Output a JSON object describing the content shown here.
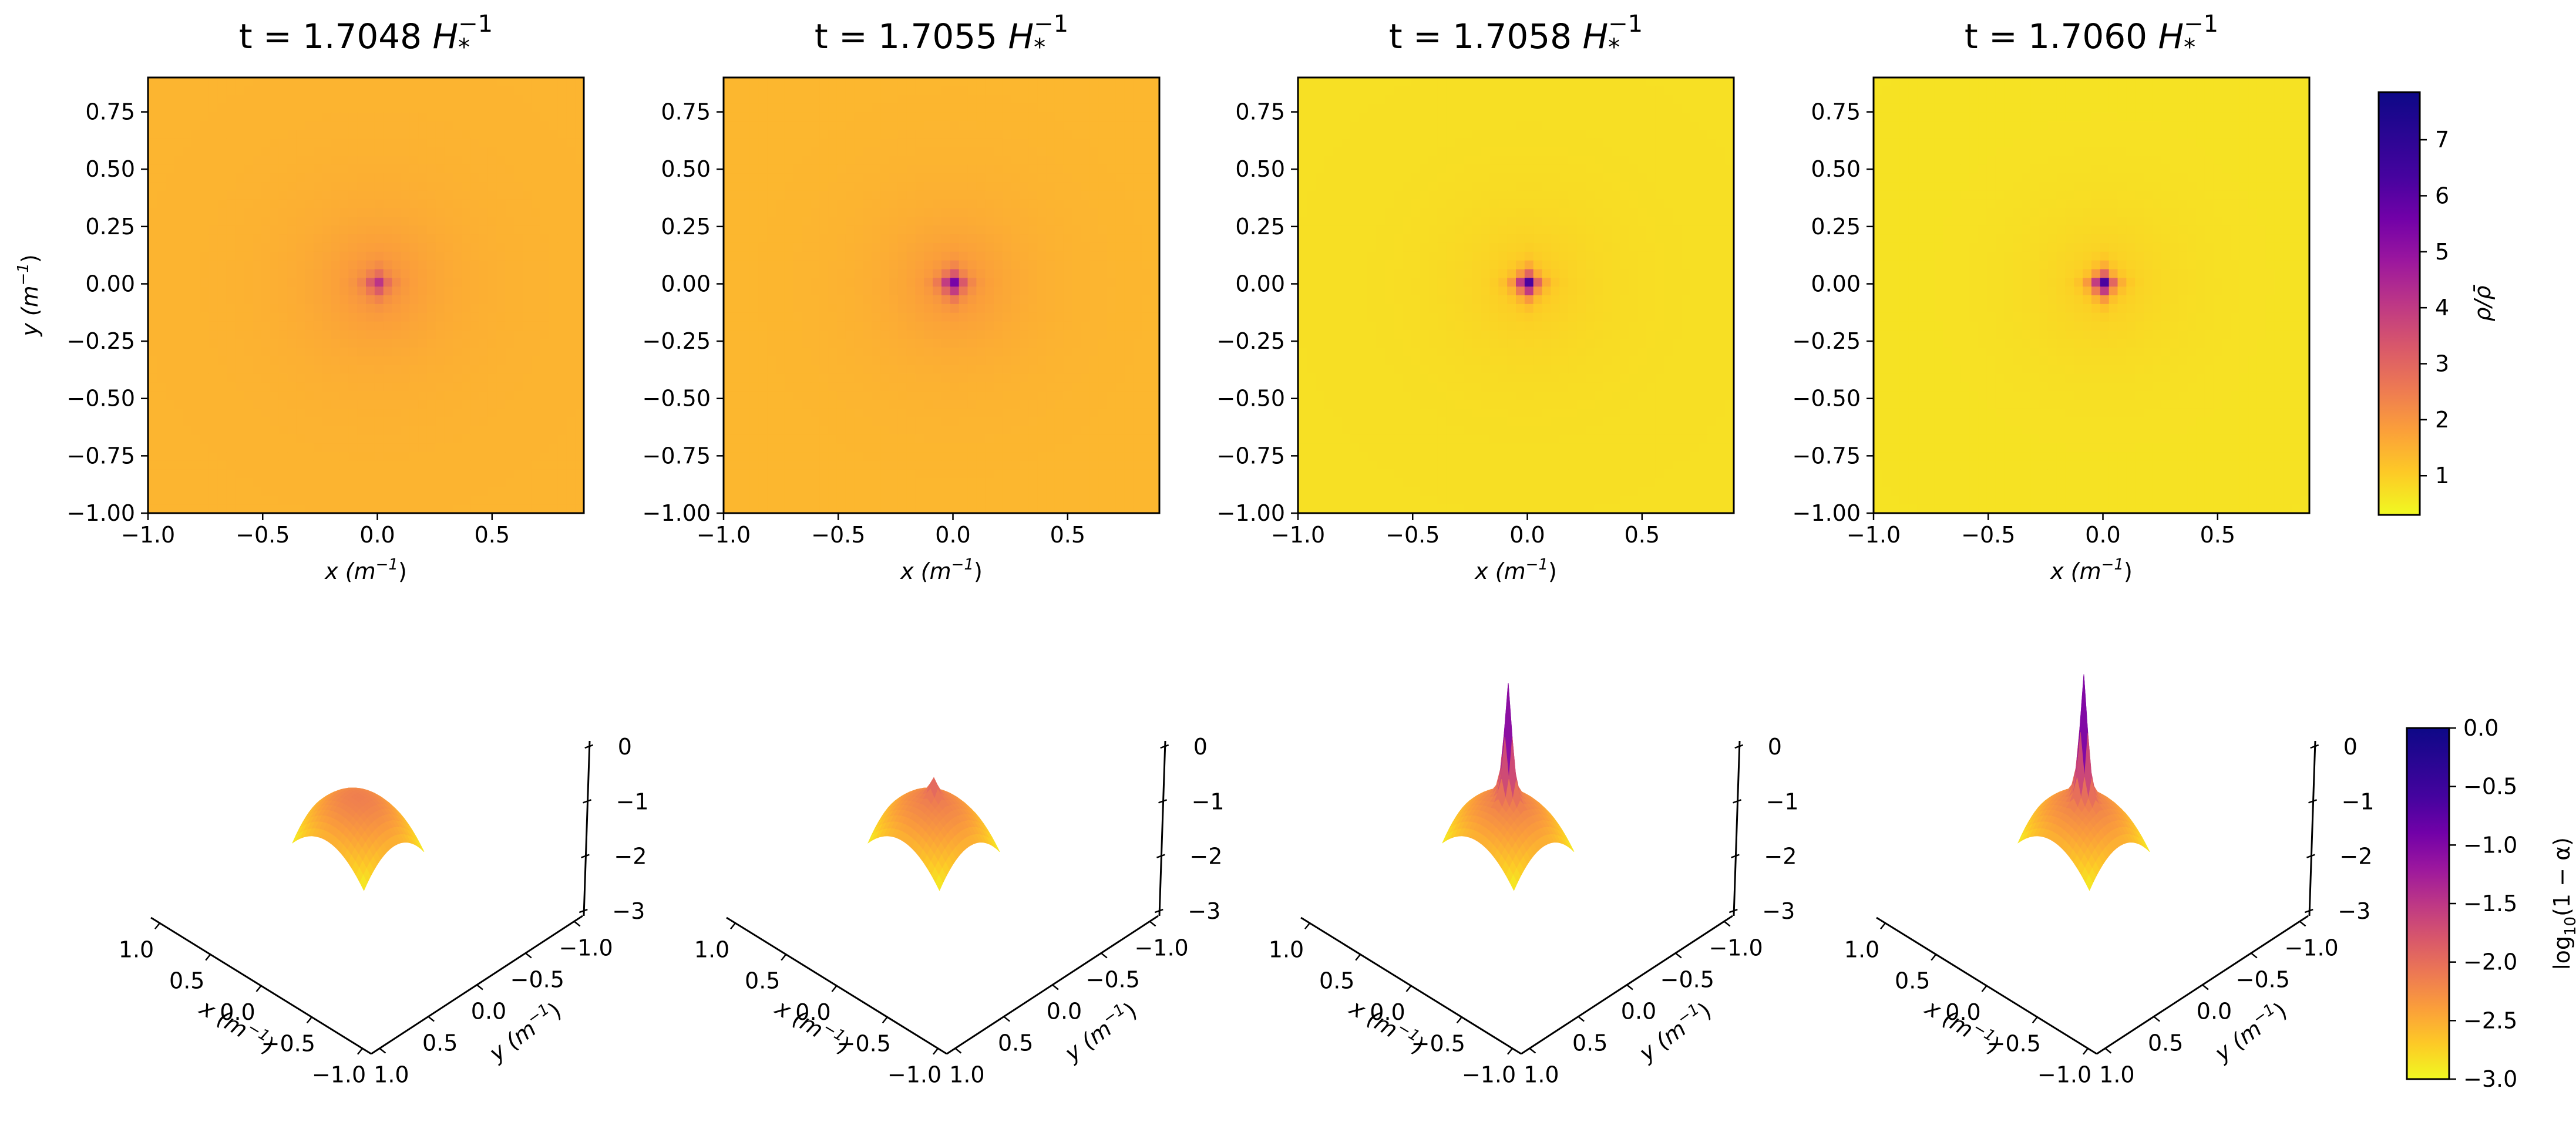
{
  "chart_data": {
    "type": "heatmap",
    "colormap": "plasma_r",
    "panels": [
      {
        "title_prefix": "t = 1.7048 ",
        "peak_rho": 4.2,
        "base_rho": 1.55,
        "peak_log": -2.05,
        "base_log": -2.6
      },
      {
        "title_prefix": "t = 1.7055 ",
        "peak_rho": 6.1,
        "base_rho": 1.5,
        "peak_log": -1.7,
        "base_log": -2.6
      },
      {
        "title_prefix": "t = 1.7058 ",
        "peak_rho": 7.8,
        "base_rho": 0.75,
        "peak_log": 0.0,
        "base_log": -2.6
      },
      {
        "title_prefix": "t = 1.7060 ",
        "peak_rho": 7.8,
        "base_rho": 0.7,
        "peak_log": 0.15,
        "base_log": -2.6
      }
    ],
    "title_unit": "H",
    "title_sub": "*",
    "title_sup": "−1",
    "heatmap": {
      "xlabel_main": "x (m",
      "xlabel_sup": "−1",
      "xlabel_end": ")",
      "ylabel_main": "y (m",
      "ylabel_sup": "−1",
      "ylabel_end": ")",
      "xlim": [
        -1.0,
        0.9
      ],
      "ylim": [
        -1.0,
        0.9
      ],
      "xticks": [
        -1.0,
        -0.5,
        0.0,
        0.5
      ],
      "xtick_labels": [
        "−1.0",
        "−0.5",
        "0.0",
        "0.5"
      ],
      "yticks": [
        0.75,
        0.5,
        0.25,
        0.0,
        -0.25,
        -0.5,
        -0.75,
        -1.0
      ],
      "ytick_labels": [
        "0.75",
        "0.50",
        "0.25",
        "0.00",
        "−0.25",
        "−0.50",
        "−0.75",
        "−1.00"
      ]
    },
    "colorbar_rho": {
      "label": "ρ/ρ̄",
      "range": [
        0.3,
        7.85
      ],
      "ticks": [
        1,
        2,
        3,
        4,
        5,
        6,
        7
      ],
      "tick_labels": [
        "1",
        "2",
        "3",
        "4",
        "5",
        "6",
        "7"
      ]
    },
    "surface": {
      "zlim": [
        -3,
        0
      ],
      "zticks": [
        0,
        -1,
        -2,
        -3
      ],
      "ztick_labels": [
        "0",
        "−1",
        "−2",
        "−3"
      ],
      "xticks": [
        1.0,
        0.5,
        0.0,
        -0.5,
        -1.0
      ],
      "xtick_labels": [
        "1.0",
        "0.5",
        "0.0",
        "−0.5",
        "−1.0"
      ],
      "yticks": [
        -1.0,
        -0.5,
        0.0,
        0.5,
        1.0
      ],
      "ytick_labels": [
        "−1.0",
        "−0.5",
        "0.0",
        "0.5",
        "1.0"
      ],
      "xlabel_main": "x (m",
      "xlabel_sup": "−1",
      "xlabel_end": ")",
      "ylabel_main": "y (m",
      "ylabel_sup": "−1",
      "ylabel_end": ")"
    },
    "colorbar_alpha": {
      "label_main": "log",
      "label_sub": "10",
      "label_end": "(1 − α)",
      "range": [
        -3.0,
        0.0
      ],
      "ticks": [
        0.0,
        -0.5,
        -1.0,
        -1.5,
        -2.0,
        -2.5,
        -3.0
      ],
      "tick_labels": [
        "0.0",
        "−0.5",
        "−1.0",
        "−1.5",
        "−2.0",
        "−2.5",
        "−3.0"
      ]
    }
  }
}
